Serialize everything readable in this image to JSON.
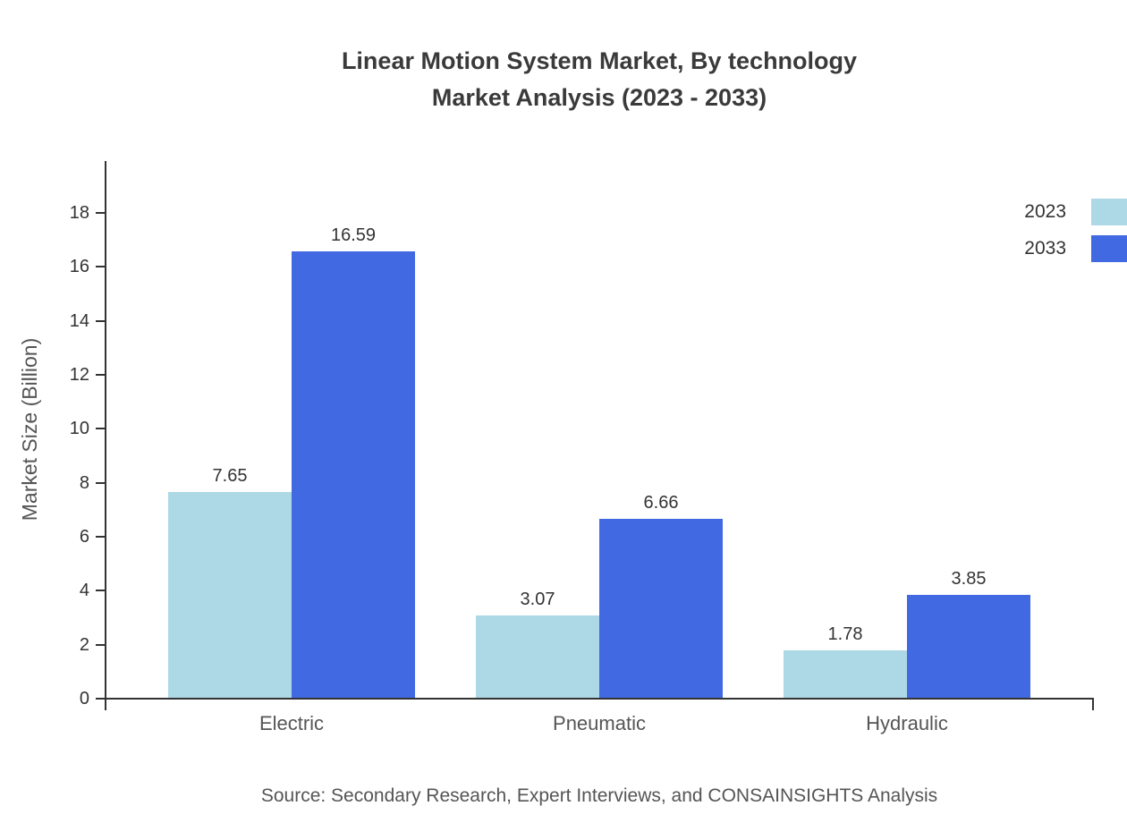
{
  "title": {
    "line1": "Linear Motion System Market, By technology",
    "line2": "Market Analysis (2023 - 2033)"
  },
  "source": "Source: Secondary Research, Expert Interviews, and CONSAINSIGHTS Analysis",
  "chart_data": {
    "type": "bar",
    "title": "Linear Motion System Market, By technology Market Analysis (2023 - 2033)",
    "categories": [
      "Electric",
      "Pneumatic",
      "Hydraulic"
    ],
    "series": [
      {
        "name": "2023",
        "color": "#add8e6",
        "values": [
          7.65,
          3.07,
          1.78
        ]
      },
      {
        "name": "2033",
        "color": "#4169e1",
        "values": [
          16.59,
          6.66,
          3.85
        ]
      }
    ],
    "xlabel": "",
    "ylabel": "Market Size (Billion)",
    "ylim": [
      0,
      18
    ],
    "yticks": [
      0,
      2,
      4,
      6,
      8,
      10,
      12,
      14,
      16,
      18
    ],
    "grid": false,
    "legend_position": "top-right"
  }
}
